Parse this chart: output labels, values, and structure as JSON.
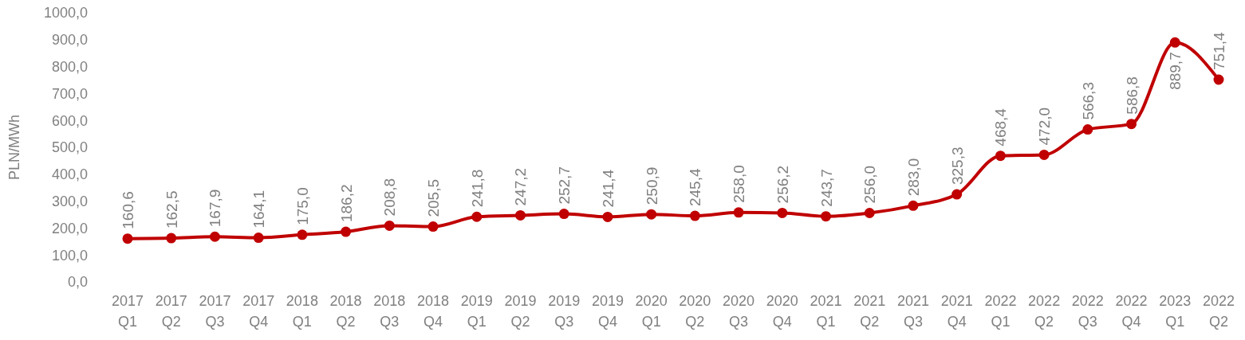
{
  "chart_data": {
    "type": "line",
    "ylabel": "PLN/MWh",
    "categories": [
      "2017 Q1",
      "2017 Q2",
      "2017 Q3",
      "2017 Q4",
      "2018 Q1",
      "2018 Q2",
      "2018 Q3",
      "2018 Q4",
      "2019 Q1",
      "2019 Q2",
      "2019 Q3",
      "2019 Q4",
      "2020 Q1",
      "2020 Q2",
      "2020 Q3",
      "2020 Q4",
      "2021 Q1",
      "2021 Q2",
      "2021 Q3",
      "2021 Q4",
      "2022 Q1",
      "2022 Q2",
      "2022 Q3",
      "2022 Q4",
      "2023 Q1",
      "2022 Q2"
    ],
    "series": [
      {
        "color": "#c00000",
        "values": [
          160.6,
          162.5,
          167.9,
          164.1,
          175.0,
          186.2,
          208.8,
          205.5,
          241.8,
          247.2,
          252.7,
          241.4,
          250.9,
          245.4,
          258.0,
          256.2,
          243.7,
          256.0,
          283.0,
          325.3,
          468.4,
          472.0,
          566.3,
          586.8,
          889.7,
          751.4
        ],
        "value_labels": [
          "160,6",
          "162,5",
          "167,9",
          "164,1",
          "175,0",
          "186,2",
          "208,8",
          "205,5",
          "241,8",
          "247,2",
          "252,7",
          "241,4",
          "250,9",
          "245,4",
          "258,0",
          "256,2",
          "243,7",
          "256,0",
          "283,0",
          "325,3",
          "468,4",
          "472,0",
          "566,3",
          "586,8",
          "889,7",
          "751,4"
        ]
      }
    ],
    "ylim": [
      0,
      1000
    ],
    "yticks": [
      {
        "value": 0,
        "label": "0,0"
      },
      {
        "value": 100,
        "label": "100,0"
      },
      {
        "value": 200,
        "label": "200,0"
      },
      {
        "value": 300,
        "label": "300,0"
      },
      {
        "value": 400,
        "label": "400,0"
      },
      {
        "value": 500,
        "label": "500,0"
      },
      {
        "value": 600,
        "label": "600,0"
      },
      {
        "value": 700,
        "label": "700,0"
      },
      {
        "value": 800,
        "label": "800,0"
      },
      {
        "value": 900,
        "label": "900,0"
      },
      {
        "value": 1000,
        "label": "1000,0"
      }
    ],
    "grid": false,
    "marker": "circle",
    "line_style": "solid"
  }
}
